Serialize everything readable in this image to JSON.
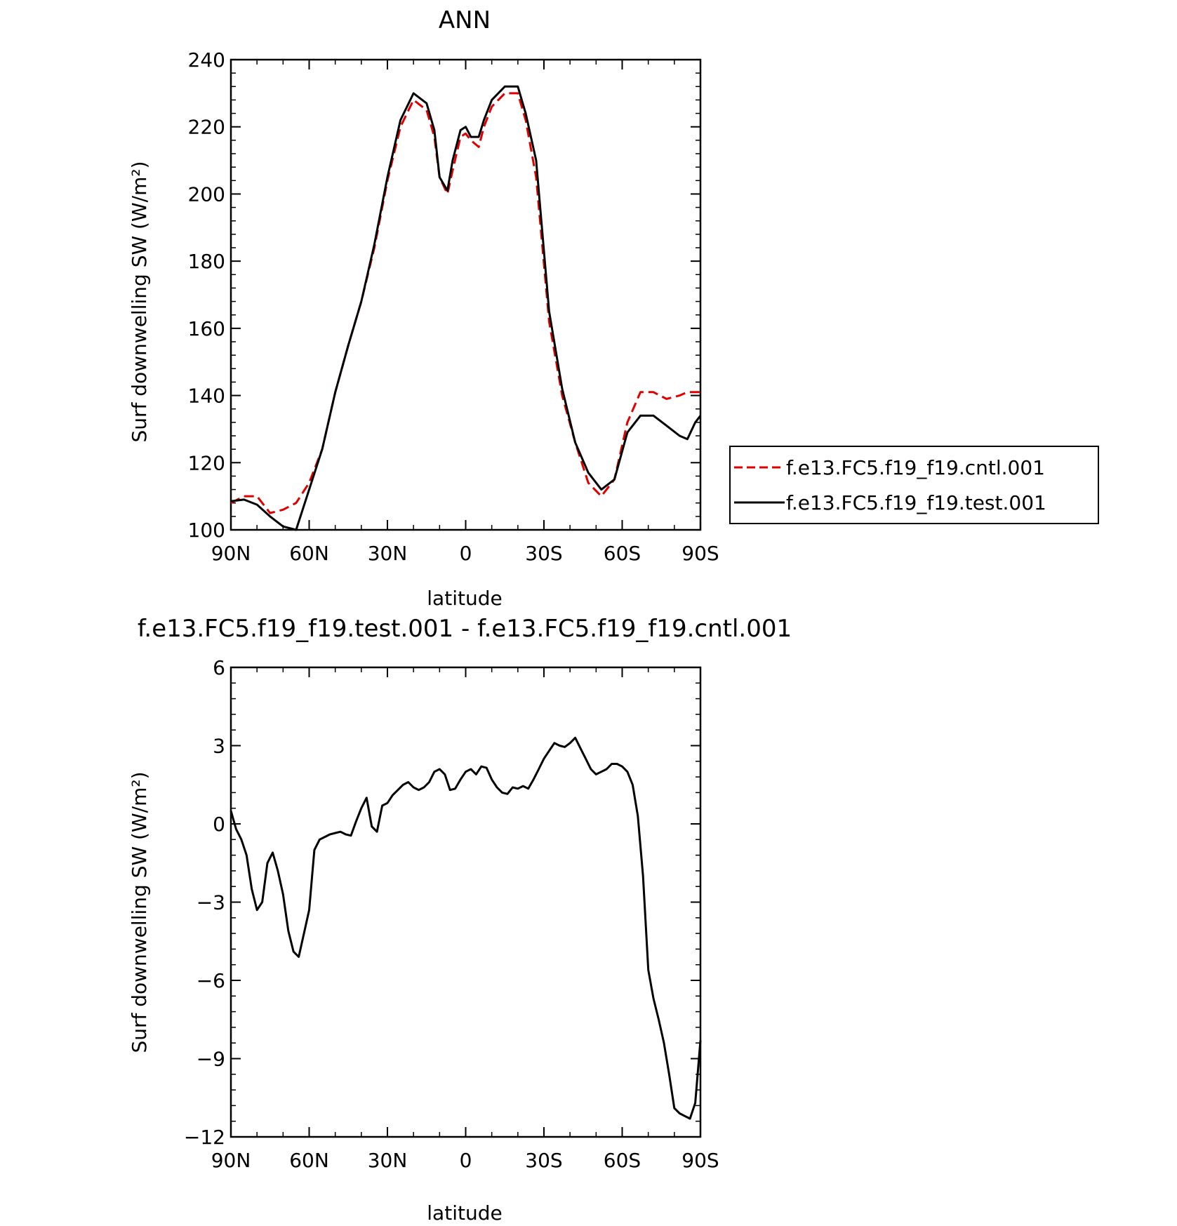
{
  "colors": {
    "cntl": "#e00000",
    "test": "#000000",
    "frame": "#000000"
  },
  "chart_data": [
    {
      "type": "line",
      "title": "ANN",
      "xlabel": "latitude",
      "ylabel": "Surf downwelling SW (W/m²)",
      "xlim": [
        90,
        -90
      ],
      "ylim": [
        100,
        240
      ],
      "x_tick_values": [
        90,
        60,
        30,
        0,
        -30,
        -60,
        -90
      ],
      "x_tick_labels": [
        "90N",
        "60N",
        "30N",
        "0",
        "30S",
        "60S",
        "90S"
      ],
      "y_tick_values": [
        100,
        120,
        140,
        160,
        180,
        200,
        220,
        240
      ],
      "y_tick_labels": [
        "100",
        "120",
        "140",
        "160",
        "180",
        "200",
        "220",
        "240"
      ],
      "legend": "right",
      "x": [
        90,
        85,
        80,
        75,
        70,
        65,
        60,
        55,
        50,
        45,
        40,
        35,
        30,
        25,
        20,
        15,
        12,
        10,
        7,
        5,
        2,
        0,
        -2,
        -5,
        -7,
        -10,
        -15,
        -20,
        -23,
        -27,
        -32,
        -37,
        -42,
        -47,
        -52,
        -57,
        -62,
        -67,
        -72,
        -77,
        -82,
        -85,
        -88,
        -90
      ],
      "series": [
        {
          "name": "f.e13.FC5.f19_f19.cntl.001",
          "style": "dashed",
          "color": "#e00000",
          "values": [
            108,
            110,
            110,
            105,
            106,
            108,
            114,
            124,
            141,
            155,
            168,
            184,
            204,
            220,
            228,
            225,
            217,
            205,
            200,
            207,
            217,
            218,
            216,
            214,
            220,
            226,
            230,
            230,
            222,
            205,
            162,
            140,
            126,
            114,
            110,
            115,
            132,
            141,
            141,
            139,
            140,
            141,
            141,
            141
          ]
        },
        {
          "name": "f.e13.FC5.f19_f19.test.001",
          "style": "solid",
          "color": "#000000",
          "values": [
            108.5,
            109,
            107.5,
            104,
            101,
            100,
            112,
            124,
            141,
            155,
            168,
            185,
            205,
            222,
            230,
            227,
            219,
            205,
            201,
            210,
            219,
            220,
            217,
            217,
            222,
            228,
            232,
            232,
            224,
            210,
            165,
            142,
            126,
            117,
            112,
            115,
            129,
            134,
            134,
            131,
            128,
            127,
            132,
            134
          ]
        }
      ]
    },
    {
      "type": "line",
      "title": "f.e13.FC5.f19_f19.test.001 - f.e13.FC5.f19_f19.cntl.001",
      "xlabel": "latitude",
      "ylabel": "Surf downwelling SW (W/m²)",
      "xlim": [
        90,
        -90
      ],
      "ylim": [
        -12,
        6
      ],
      "x_tick_values": [
        90,
        60,
        30,
        0,
        -30,
        -60,
        -90
      ],
      "x_tick_labels": [
        "90N",
        "60N",
        "30N",
        "0",
        "30S",
        "60S",
        "90S"
      ],
      "y_tick_values": [
        -12,
        -9,
        -6,
        -3,
        0,
        3,
        6
      ],
      "y_tick_labels": [
        "−12",
        "−9",
        "−6",
        "−3",
        "0",
        "3",
        "6"
      ],
      "x": [
        90,
        88,
        86,
        84,
        82,
        80,
        78,
        76,
        74,
        72,
        70,
        68,
        66,
        64,
        62,
        60,
        58,
        56,
        54,
        52,
        50,
        48,
        46,
        44,
        42,
        40,
        38,
        36,
        34,
        32,
        30,
        28,
        26,
        24,
        22,
        20,
        18,
        16,
        14,
        12,
        10,
        8,
        6,
        4,
        2,
        0,
        -2,
        -4,
        -6,
        -8,
        -10,
        -12,
        -14,
        -16,
        -18,
        -20,
        -22,
        -24,
        -26,
        -28,
        -30,
        -32,
        -34,
        -36,
        -38,
        -40,
        -42,
        -44,
        -46,
        -48,
        -50,
        -52,
        -54,
        -56,
        -58,
        -60,
        -62,
        -64,
        -66,
        -68,
        -70,
        -72,
        -74,
        -76,
        -78,
        -80,
        -82,
        -84,
        -86,
        -88,
        -90
      ],
      "series": [
        {
          "name": "",
          "style": "solid",
          "color": "#000000",
          "values": [
            0.5,
            -0.2,
            -0.6,
            -1.2,
            -2.5,
            -3.3,
            -3.0,
            -1.5,
            -1.1,
            -1.8,
            -2.7,
            -4.1,
            -4.9,
            -5.1,
            -4.2,
            -3.3,
            -1.0,
            -0.6,
            -0.5,
            -0.4,
            -0.35,
            -0.3,
            -0.4,
            -0.45,
            0.1,
            0.6,
            1.0,
            -0.1,
            -0.3,
            0.7,
            0.8,
            1.1,
            1.3,
            1.5,
            1.6,
            1.4,
            1.3,
            1.4,
            1.6,
            2.0,
            2.1,
            1.9,
            1.3,
            1.35,
            1.7,
            2.0,
            2.1,
            1.9,
            2.2,
            2.15,
            1.7,
            1.4,
            1.2,
            1.15,
            1.4,
            1.35,
            1.45,
            1.35,
            1.7,
            2.1,
            2.5,
            2.8,
            3.1,
            3.0,
            2.95,
            3.1,
            3.3,
            2.9,
            2.5,
            2.1,
            1.9,
            2.0,
            2.1,
            2.3,
            2.3,
            2.2,
            2.0,
            1.5,
            0.3,
            -2.0,
            -5.6,
            -6.7,
            -7.5,
            -8.4,
            -9.6,
            -10.9,
            -11.1,
            -11.2,
            -11.3,
            -10.7,
            -8.3
          ]
        }
      ]
    }
  ]
}
